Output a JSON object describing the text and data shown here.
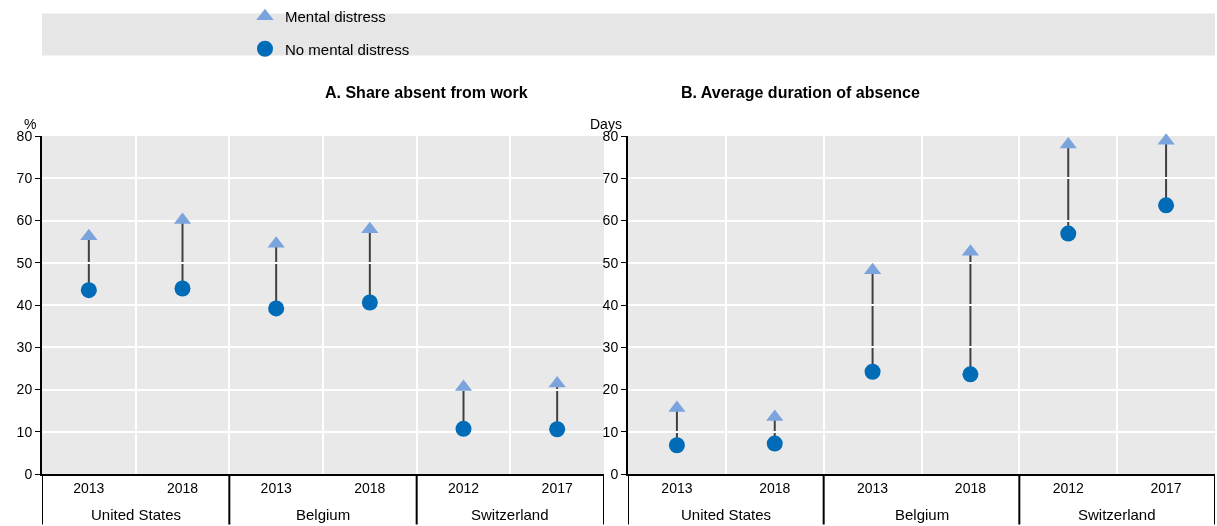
{
  "chart_data": [
    {
      "type": "scatter",
      "title": "A. Share absent from work",
      "ylabel": "%",
      "categories": [
        "2013",
        "2018",
        "2013",
        "2018",
        "2012",
        "2017"
      ],
      "annotations": [
        "United States",
        "Belgium",
        "Switzerland"
      ],
      "ylim": [
        0,
        80
      ],
      "yticks": [
        0,
        10,
        20,
        30,
        40,
        50,
        60,
        70,
        80
      ],
      "grid": true,
      "legend": "top",
      "series": [
        {
          "name": "Mental distress",
          "color": "#7ba3dc",
          "marker": "triangle",
          "values": [
            56.3,
            60.1,
            54.5,
            57.9,
            20.6,
            21.4
          ]
        },
        {
          "name": "No mental distress",
          "color": "#006bb6",
          "marker": "circle",
          "values": [
            43.5,
            43.9,
            39.2,
            40.6,
            10.7,
            10.6
          ]
        }
      ]
    },
    {
      "type": "scatter",
      "title": "B. Average duration of absence",
      "ylabel": "Days",
      "categories": [
        "2013",
        "2018",
        "2013",
        "2018",
        "2012",
        "2017"
      ],
      "annotations": [
        "United States",
        "Belgium",
        "Switzerland"
      ],
      "ylim": [
        0,
        80
      ],
      "yticks": [
        0,
        10,
        20,
        30,
        40,
        50,
        60,
        70,
        80
      ],
      "grid": true,
      "series": [
        {
          "color": "#7ba3dc",
          "marker": "triangle",
          "values": [
            15.6,
            13.5,
            48.2,
            52.6,
            78.0,
            78.9
          ]
        },
        {
          "color": "#006bb6",
          "marker": "circle",
          "values": [
            6.8,
            7.2,
            24.2,
            23.6,
            56.9,
            63.6
          ]
        }
      ]
    }
  ]
}
